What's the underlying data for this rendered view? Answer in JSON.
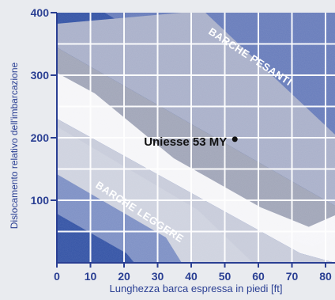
{
  "chart_data": {
    "type": "scatter",
    "xlabel": "Lunghezza barca espressa in piedi [ft]",
    "ylabel": "Dislocamento relativo dell'imbarcazione",
    "x_ticks": [
      0,
      10,
      20,
      30,
      40,
      50,
      60,
      70,
      80
    ],
    "y_ticks": [
      100,
      200,
      300,
      400
    ],
    "xlim": [
      0,
      80
    ],
    "ylim": [
      0,
      400
    ],
    "grid": true,
    "regions": [
      {
        "label": "BARCHE PESANTI"
      },
      {
        "label": "BARCHE LEGGERE"
      }
    ],
    "points": [
      {
        "label": "Uniesse 53 MY",
        "x": 53,
        "y": 190
      }
    ],
    "colors": {
      "dark_blue": "#2f4fa3",
      "mid_blue": "#7c8fc4",
      "light_band": "#c7ccdc",
      "white_band": "#f7f7f9",
      "grey_band": "#9fa3b4",
      "axis_blue": "#2a3f93",
      "text_dark": "#111111"
    }
  }
}
